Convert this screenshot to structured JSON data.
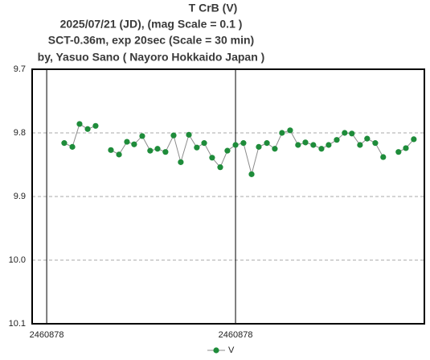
{
  "chart_data": {
    "type": "line",
    "title": "T CrB  (V)",
    "subtitle": [
      "2025/07/21 (JD),   (mag Scale = 0.1 )",
      "SCT-0.36m, exp 20sec (Scale = 30 min)",
      "by, Yasuo Sano ( Nayoro Hokkaido Japan )"
    ],
    "x": [
      2460878.5693,
      2460878.5736,
      2460878.5774,
      2460878.5817,
      2460878.5859,
      null,
      2460878.594,
      2460878.5983,
      2460878.6025,
      2460878.6063,
      2460878.6106,
      2460878.6148,
      2460878.6187,
      2460878.6229,
      2460878.6272,
      2460878.631,
      2460878.6353,
      2460878.6395,
      2460878.6434,
      2460878.6476,
      2460878.6519,
      2460878.6557,
      2460878.66,
      2460878.6642,
      2460878.6685,
      2460878.6723,
      2460878.6766,
      2460878.6808,
      2460878.6846,
      2460878.6889,
      2460878.6931,
      2460878.697,
      2460878.7012,
      2460878.7055,
      2460878.7093,
      2460878.7136,
      2460878.7178,
      2460878.7216,
      2460878.7259,
      2460878.7297,
      2460878.734,
      2460878.7382,
      null,
      2460878.7463,
      2460878.7502,
      2460878.7544
    ],
    "series": [
      {
        "name": "V",
        "color": "#1e8c3a",
        "line_color": "#8c8c8c",
        "values": [
          9.816,
          9.822,
          9.786,
          9.794,
          9.789,
          null,
          9.827,
          9.834,
          9.814,
          9.818,
          9.805,
          9.828,
          9.825,
          9.83,
          9.804,
          9.846,
          9.803,
          9.823,
          9.816,
          9.839,
          9.854,
          9.828,
          9.819,
          9.816,
          9.865,
          9.822,
          9.816,
          9.825,
          9.8,
          9.796,
          9.819,
          9.815,
          9.819,
          9.825,
          9.819,
          9.811,
          9.8,
          9.801,
          9.819,
          9.809,
          9.816,
          9.838,
          null,
          9.83,
          9.824,
          9.81
        ]
      }
    ],
    "xlim": [
      2460878.5523,
      2460878.76
    ],
    "xticks": [
      {
        "value": 2460878.56,
        "label": "2460878"
      },
      {
        "value": 2460878.66,
        "label": "2460878"
      }
    ],
    "ylim": [
      9.7,
      10.1
    ],
    "y_inverted": true,
    "yticks": [
      9.7,
      9.8,
      9.9,
      {
        "value": 10,
        "label": "10.0"
      },
      10.1
    ],
    "grid": true,
    "legend": "bottom"
  }
}
